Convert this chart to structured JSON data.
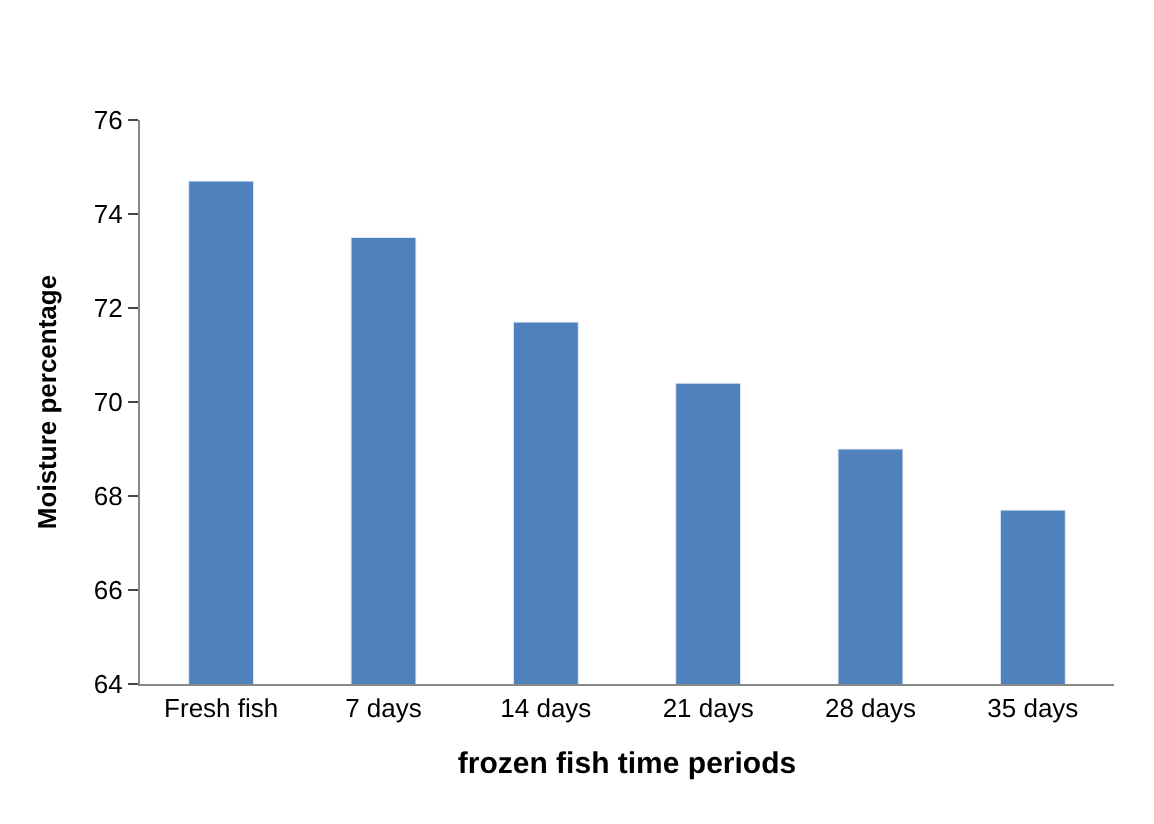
{
  "chart_data": {
    "type": "bar",
    "xlabel": "frozen fish time periods",
    "ylabel": "Moisture percentage",
    "categories": [
      "Fresh fish",
      "7 days",
      "14 days",
      "21 days",
      "28 days",
      "35 days"
    ],
    "values": [
      74.7,
      73.5,
      71.7,
      70.4,
      69.0,
      67.7
    ],
    "color": "#4f81bd",
    "ylim": [
      64,
      76
    ],
    "yticks": [
      64,
      66,
      68,
      70,
      72,
      74,
      76
    ],
    "legend": false
  }
}
